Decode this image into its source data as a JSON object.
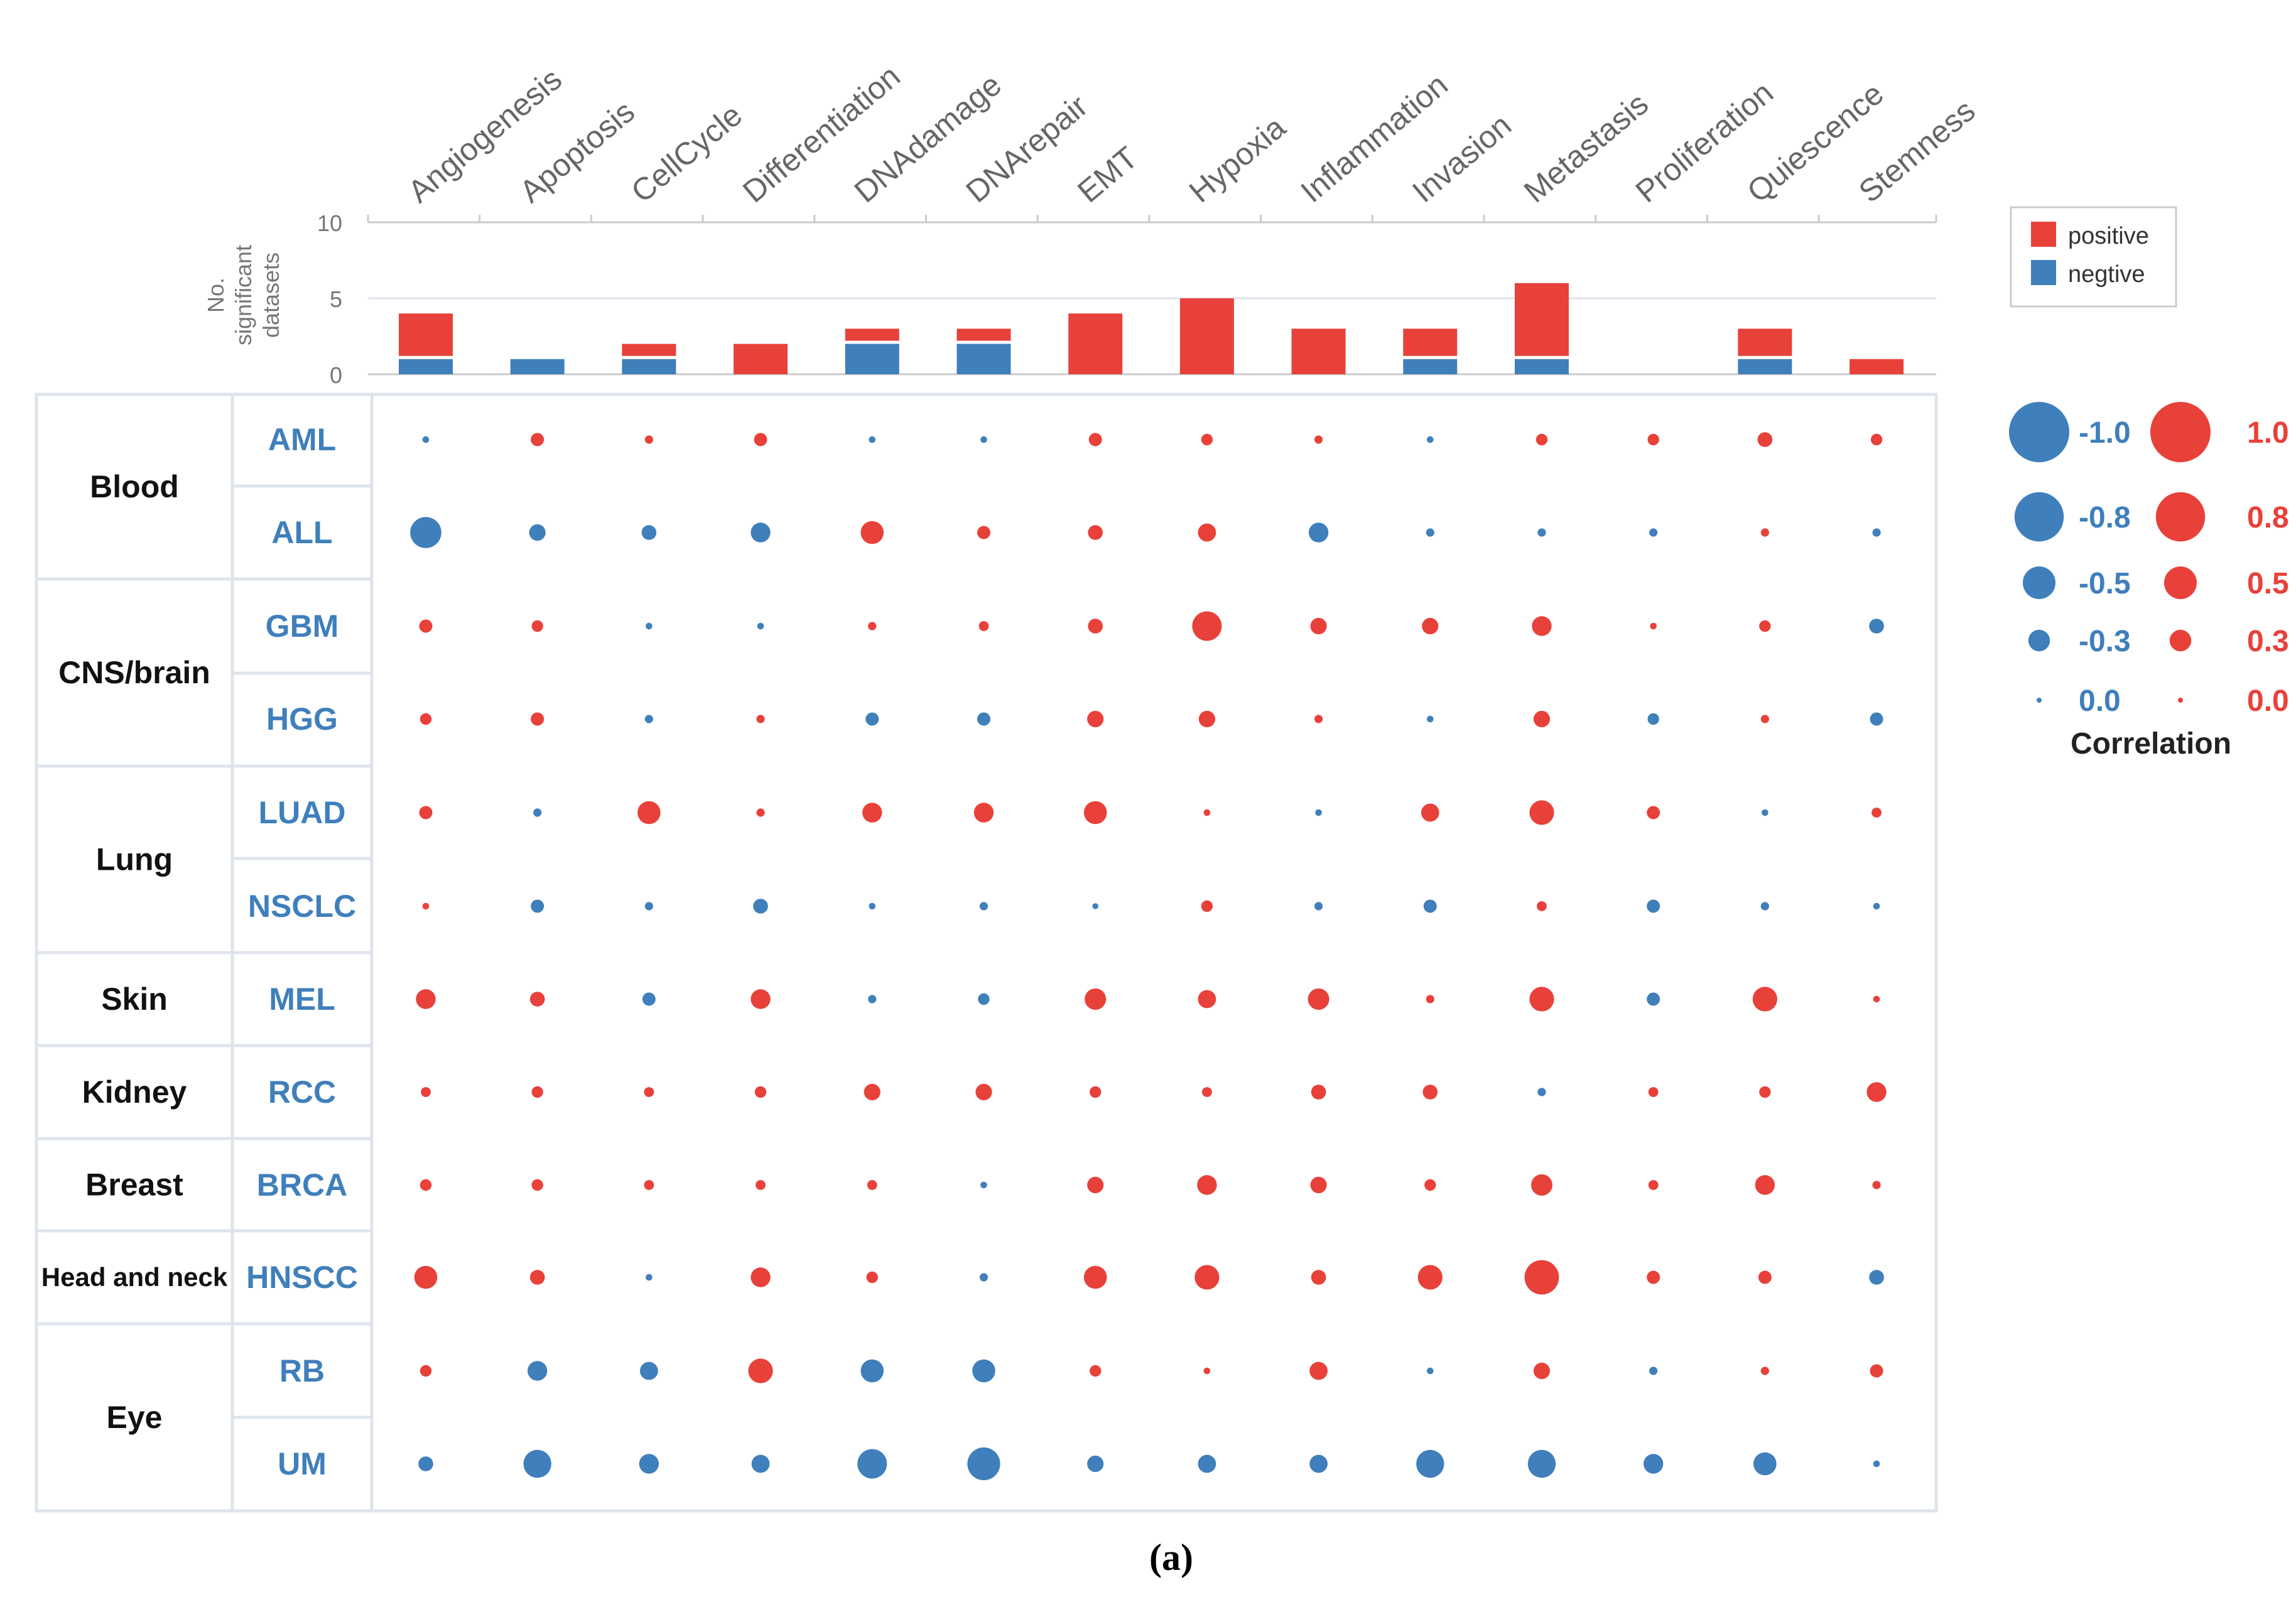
{
  "chart_data": {
    "type": "bubble-matrix",
    "columns": [
      "Angiogenesis",
      "Apoptosis",
      "CellCycle",
      "Differentiation",
      "DNAdamage",
      "DNArepair",
      "EMT",
      "Hypoxia",
      "Inflammation",
      "Invasion",
      "Metastasis",
      "Proliferation",
      "Quiescence",
      "Stemness"
    ],
    "bar_chart": {
      "ylabel": "No. significant datasets",
      "yticks": [
        "10",
        "5",
        "0"
      ],
      "ylim": [
        0,
        10
      ],
      "series": [
        {
          "name": "positive",
          "color": "#e8413a",
          "values": [
            3,
            0,
            1,
            2,
            1,
            1,
            4,
            5,
            3,
            2,
            5,
            0,
            2,
            1
          ]
        },
        {
          "name": "negtive",
          "color": "#3f7fbb",
          "values": [
            1,
            1,
            1,
            0,
            2,
            2,
            0,
            0,
            0,
            1,
            1,
            0,
            1,
            0
          ]
        }
      ]
    },
    "groups": [
      {
        "name": "Blood",
        "rows": [
          "AML",
          "ALL"
        ]
      },
      {
        "name": "CNS/brain",
        "rows": [
          "GBM",
          "HGG"
        ]
      },
      {
        "name": "Lung",
        "rows": [
          "LUAD",
          "NSCLC"
        ]
      },
      {
        "name": "Skin",
        "rows": [
          "MEL"
        ]
      },
      {
        "name": "Kidney",
        "rows": [
          "RCC"
        ]
      },
      {
        "name": "Breast",
        "rows": [
          "BRCA"
        ]
      },
      {
        "name": "Head and neck",
        "rows": [
          "HNSCC"
        ]
      },
      {
        "name": "Eye",
        "rows": [
          "RB",
          "UM"
        ]
      }
    ],
    "rows": [
      "AML",
      "ALL",
      "GBM",
      "HGG",
      "LUAD",
      "NSCLC",
      "MEL",
      "RCC",
      "BRCA",
      "HNSCC",
      "RB",
      "UM"
    ],
    "correlations": [
      [
        -0.05,
        0.25,
        0.1,
        0.25,
        -0.05,
        -0.05,
        0.25,
        0.2,
        0.1,
        -0.05,
        0.2,
        0.2,
        0.3,
        0.2
      ],
      [
        -0.8,
        -0.35,
        -0.3,
        -0.45,
        0.55,
        0.25,
        0.3,
        0.4,
        -0.45,
        -0.1,
        -0.1,
        -0.1,
        0.1,
        -0.1
      ],
      [
        0.25,
        0.2,
        -0.05,
        -0.05,
        0.1,
        0.15,
        0.3,
        0.75,
        0.35,
        0.35,
        0.45,
        0.05,
        0.2,
        -0.3
      ],
      [
        0.2,
        0.25,
        -0.1,
        0.1,
        -0.25,
        -0.25,
        0.35,
        0.35,
        0.1,
        -0.05,
        0.35,
        -0.2,
        0.1,
        -0.25
      ],
      [
        0.25,
        -0.1,
        0.55,
        0.1,
        0.45,
        0.45,
        0.55,
        0.05,
        -0.05,
        0.4,
        0.6,
        0.25,
        -0.05,
        0.15
      ],
      [
        0.05,
        -0.25,
        -0.1,
        -0.3,
        -0.05,
        -0.1,
        -0.03,
        0.2,
        -0.1,
        -0.25,
        0.15,
        -0.25,
        -0.1,
        -0.05
      ],
      [
        0.45,
        0.3,
        -0.25,
        0.45,
        -0.1,
        -0.2,
        0.5,
        0.4,
        0.5,
        0.1,
        0.6,
        -0.25,
        0.6,
        0.05
      ],
      [
        0.15,
        0.2,
        0.15,
        0.2,
        0.35,
        0.35,
        0.2,
        0.15,
        0.3,
        0.3,
        -0.1,
        0.15,
        0.2,
        0.45
      ],
      [
        0.2,
        0.2,
        0.15,
        0.15,
        0.15,
        -0.05,
        0.35,
        0.45,
        0.35,
        0.2,
        0.5,
        0.15,
        0.45,
        0.1
      ],
      [
        0.55,
        0.3,
        -0.05,
        0.45,
        0.2,
        -0.1,
        0.55,
        0.6,
        0.3,
        0.6,
        0.9,
        0.25,
        0.25,
        -0.3
      ],
      [
        0.2,
        -0.45,
        -0.4,
        0.6,
        -0.55,
        -0.55,
        0.2,
        0.05,
        0.4,
        -0.05,
        0.35,
        -0.1,
        0.1,
        0.25
      ],
      [
        -0.3,
        -0.7,
        -0.45,
        -0.4,
        -0.75,
        -0.85,
        -0.35,
        -0.4,
        -0.4,
        -0.7,
        -0.7,
        -0.45,
        -0.55,
        -0.05
      ]
    ],
    "size_legend": {
      "title": "Correlation",
      "negative_labels": [
        "-1.0",
        "-0.8",
        "-0.5",
        "-0.3",
        "0.0"
      ],
      "positive_labels": [
        "1.0",
        "0.8",
        "0.5",
        "0.3",
        "0.0"
      ],
      "levels": [
        1.0,
        0.8,
        0.5,
        0.3,
        0.0
      ]
    },
    "caption": "(a)",
    "colors": {
      "positive": "#e8413a",
      "negative": "#3f7fbb",
      "grid": "#dfe4ec",
      "row_label": "#3f7fbb"
    }
  }
}
